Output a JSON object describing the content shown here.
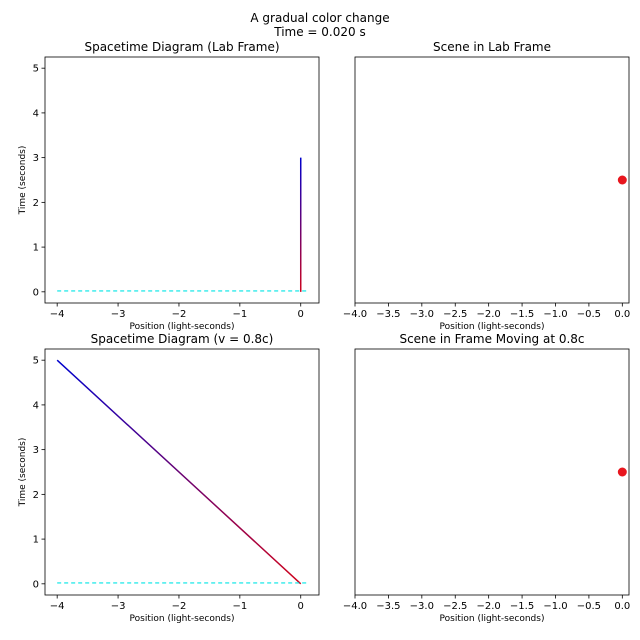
{
  "suptitle": [
    "A gradual color change",
    "Time = 0.020 s"
  ],
  "colors": {
    "worldline_start": "#d0021b",
    "worldline_end": "#0000cc",
    "light_line": "#00e5e5",
    "dot": "#e8161e"
  },
  "chart_data": [
    {
      "type": "line",
      "title": "Spacetime Diagram (Lab Frame)",
      "xlabel": "Position (light-seconds)",
      "ylabel": "Time (seconds)",
      "xlim": [
        -4.2,
        0.3
      ],
      "ylim": [
        -0.25,
        5.25
      ],
      "xticks": [
        -4,
        -3,
        -2,
        -1,
        0
      ],
      "xtick_labels": [
        "−4",
        "−3",
        "−2",
        "−1",
        "0"
      ],
      "yticks": [
        0,
        1,
        2,
        3,
        4,
        5
      ],
      "ytick_labels": [
        "0",
        "1",
        "2",
        "3",
        "4",
        "5"
      ],
      "series": [
        {
          "style": "gradient-solid",
          "x": [
            0,
            0
          ],
          "y": [
            0,
            3
          ]
        },
        {
          "style": "dashed",
          "x": [
            -4,
            0.1
          ],
          "y": [
            0.02,
            0.02
          ]
        }
      ]
    },
    {
      "type": "scatter",
      "title": "Scene in Lab Frame",
      "xlabel": "Position (light-seconds)",
      "xlim": [
        -4.0,
        0.1
      ],
      "xticks": [
        -4.0,
        -3.5,
        -3.0,
        -2.5,
        -2.0,
        -1.5,
        -1.0,
        -0.5,
        0.0
      ],
      "xtick_labels": [
        "−4.0",
        "−3.5",
        "−3.0",
        "−2.5",
        "−2.0",
        "−1.5",
        "−1.0",
        "−0.5",
        "0.0"
      ],
      "ylim": [
        0,
        5
      ],
      "yticks": [],
      "points": [
        {
          "x": 0.0,
          "y": 2.5
        }
      ]
    },
    {
      "type": "line",
      "title": "Spacetime Diagram (v = 0.8c)",
      "xlabel": "Position (light-seconds)",
      "ylabel": "Time (seconds)",
      "xlim": [
        -4.2,
        0.3
      ],
      "ylim": [
        -0.25,
        5.25
      ],
      "xticks": [
        -4,
        -3,
        -2,
        -1,
        0
      ],
      "xtick_labels": [
        "−4",
        "−3",
        "−2",
        "−1",
        "0"
      ],
      "yticks": [
        0,
        1,
        2,
        3,
        4,
        5
      ],
      "ytick_labels": [
        "0",
        "1",
        "2",
        "3",
        "4",
        "5"
      ],
      "series": [
        {
          "style": "gradient-solid",
          "x": [
            0,
            -4
          ],
          "y": [
            0,
            5
          ]
        },
        {
          "style": "dashed",
          "x": [
            -4,
            0.1
          ],
          "y": [
            0.02,
            0.02
          ]
        }
      ]
    },
    {
      "type": "scatter",
      "title": "Scene in Frame Moving at 0.8c",
      "xlabel": "Position (light-seconds)",
      "xlim": [
        -4.0,
        0.1
      ],
      "xticks": [
        -4.0,
        -3.5,
        -3.0,
        -2.5,
        -2.0,
        -1.5,
        -1.0,
        -0.5,
        0.0
      ],
      "xtick_labels": [
        "−4.0",
        "−3.5",
        "−3.0",
        "−2.5",
        "−2.0",
        "−1.5",
        "−1.0",
        "−0.5",
        "0.0"
      ],
      "ylim": [
        0,
        5
      ],
      "yticks": [],
      "points": [
        {
          "x": 0.0,
          "y": 2.5
        }
      ]
    }
  ]
}
